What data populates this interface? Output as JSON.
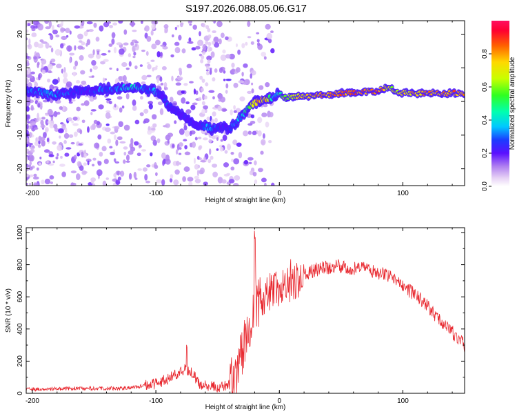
{
  "title": "S197.2026.088.05.06.G17",
  "colors": {
    "snr_line": "#e8262d",
    "frame": "#000000"
  },
  "chart_data": [
    {
      "type": "heatmap",
      "title": "S197.2026.088.05.06.G17",
      "xlabel": "Height of straight line (km)",
      "ylabel": "Frequency (Hz)",
      "xlim": [
        -205,
        150
      ],
      "ylim": [
        -25,
        24
      ],
      "xticks": [
        -200,
        -100,
        0,
        100
      ],
      "xtick_labels": [
        "-200",
        "-100",
        "0",
        "100"
      ],
      "yticks": [
        -20,
        -10,
        0,
        10,
        20
      ],
      "ytick_labels": [
        "-20",
        "-10",
        "0",
        "10",
        "20"
      ],
      "colorbar": {
        "label": "Normalized spectral amplitude",
        "range": [
          0,
          1
        ],
        "ticks": [
          0.0,
          0.2,
          0.4,
          0.6,
          0.8
        ],
        "tick_labels": [
          "0.0",
          "0.2",
          "0.4",
          "0.6",
          "0.8"
        ]
      },
      "ridge_track": {
        "x": [
          -205,
          -195,
          -185,
          -175,
          -165,
          -155,
          -145,
          -135,
          -125,
          -115,
          -108,
          -100,
          -95,
          -90,
          -85,
          -80,
          -75,
          -70,
          -65,
          -60,
          -55,
          -50,
          -45,
          -40,
          -35,
          -30,
          -25,
          -20,
          -15,
          -10,
          -5,
          0,
          5,
          10,
          20,
          30,
          40,
          50,
          60,
          70,
          80,
          85,
          90,
          100,
          110,
          120,
          130,
          140,
          150
        ],
        "freq": [
          3,
          3,
          2,
          2.5,
          3,
          3,
          3.5,
          3.5,
          4,
          4,
          3.5,
          3,
          1.5,
          -1,
          -3,
          -4,
          -5.5,
          -6.5,
          -7,
          -7.5,
          -8,
          -7.5,
          -7.5,
          -8.5,
          -6,
          -4,
          -2,
          -0.5,
          0.5,
          1,
          1,
          2.5,
          1,
          1.5,
          1.5,
          2,
          2,
          2.5,
          2.5,
          3,
          3,
          4,
          4,
          2.5,
          2.5,
          2.5,
          2.5,
          2.5,
          2.5
        ],
        "amplitude": [
          0.35,
          0.35,
          0.45,
          0.35,
          0.3,
          0.3,
          0.35,
          0.35,
          0.45,
          0.45,
          0.4,
          0.4,
          0.3,
          0.3,
          0.25,
          0.25,
          0.3,
          0.25,
          0.25,
          0.35,
          0.45,
          0.3,
          0.3,
          0.3,
          0.4,
          0.45,
          0.6,
          0.85,
          0.85,
          0.8,
          0.4,
          0.5,
          0.7,
          0.75,
          0.8,
          0.85,
          0.85,
          0.9,
          0.9,
          0.9,
          0.95,
          0.85,
          0.7,
          0.75,
          0.85,
          0.85,
          0.85,
          0.9,
          0.9
        ]
      }
    },
    {
      "type": "line",
      "xlabel": "Height of straight line (km)",
      "ylabel": "SNR (10 * v/v)",
      "xlim": [
        -205,
        150
      ],
      "ylim": [
        0,
        1030
      ],
      "xticks": [
        -200,
        -100,
        0,
        100
      ],
      "xtick_labels": [
        "-200",
        "-100",
        "0",
        "100"
      ],
      "yticks": [
        0,
        200,
        400,
        600,
        800,
        1000
      ],
      "ytick_labels": [
        "0",
        "200",
        "400",
        "600",
        "800",
        "1000"
      ],
      "series": [
        {
          "name": "SNR",
          "x": [
            -205,
            -190,
            -180,
            -170,
            -160,
            -150,
            -140,
            -130,
            -120,
            -110,
            -100,
            -90,
            -85,
            -80,
            -75,
            -70,
            -65,
            -60,
            -55,
            -50,
            -45,
            -40,
            -35,
            -30,
            -25,
            -22,
            -20,
            -18,
            -15,
            -10,
            -5,
            0,
            5,
            10,
            15,
            20,
            25,
            30,
            35,
            40,
            45,
            50,
            55,
            60,
            65,
            70,
            75,
            80,
            85,
            90,
            95,
            100,
            105,
            110,
            115,
            120,
            125,
            130,
            135,
            140,
            145,
            150
          ],
          "values": [
            25,
            25,
            28,
            30,
            30,
            30,
            32,
            30,
            35,
            45,
            60,
            90,
            110,
            140,
            150,
            120,
            60,
            45,
            40,
            40,
            50,
            60,
            120,
            250,
            400,
            520,
            560,
            560,
            580,
            610,
            660,
            640,
            670,
            660,
            700,
            730,
            750,
            770,
            780,
            785,
            790,
            790,
            785,
            780,
            780,
            775,
            760,
            750,
            740,
            720,
            690,
            660,
            640,
            610,
            580,
            540,
            500,
            460,
            420,
            380,
            340,
            300
          ],
          "peak_annotations": [
            {
              "x": -20,
              "value": 1030
            },
            {
              "x": 9,
              "value": 850
            },
            {
              "x": -75,
              "value": 310
            }
          ]
        }
      ]
    }
  ]
}
